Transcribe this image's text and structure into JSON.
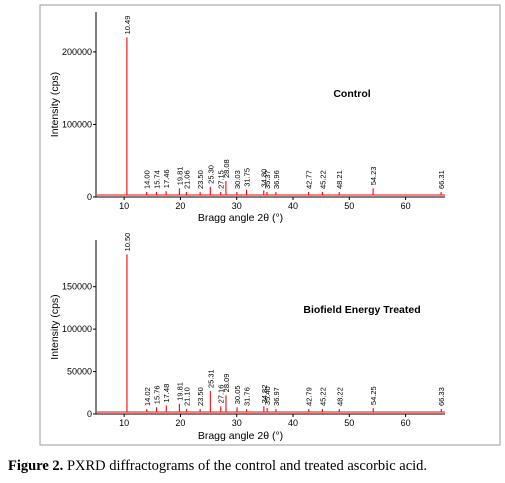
{
  "figure": {
    "caption_label": "Figure 2.",
    "caption_text": " PXRD diffractograms of the control and treated ascorbic acid.",
    "panel_border_color": "#9a9a9a",
    "trace_color": "#ff0000",
    "axis_color": "#000000"
  },
  "chart_data": [
    {
      "type": "line",
      "title": "Control",
      "xlabel": "Bragg angle 2θ (°)",
      "ylabel": "Intensity (cps)",
      "xlim": [
        5,
        67
      ],
      "ylim": [
        0,
        255000
      ],
      "xticks": [
        10,
        20,
        30,
        40,
        50,
        60
      ],
      "yticks": [
        0,
        100000,
        200000
      ],
      "ytick_labels": [
        "0",
        "100000",
        "200000"
      ],
      "grid": false,
      "peaks": [
        {
          "x": 10.49,
          "y": 220000,
          "label": "10.49"
        },
        {
          "x": 14.0,
          "y": 4000,
          "label": "14.00"
        },
        {
          "x": 15.74,
          "y": 7000,
          "label": "15.74"
        },
        {
          "x": 17.46,
          "y": 8000,
          "label": "17.46"
        },
        {
          "x": 19.81,
          "y": 12000,
          "label": "19.81"
        },
        {
          "x": 21.06,
          "y": 4500,
          "label": "21.06"
        },
        {
          "x": 23.5,
          "y": 4500,
          "label": "23.50"
        },
        {
          "x": 25.3,
          "y": 14000,
          "label": "25.30"
        },
        {
          "x": 27.15,
          "y": 7000,
          "label": "27.15"
        },
        {
          "x": 28.08,
          "y": 22000,
          "label": "28.08"
        },
        {
          "x": 30.03,
          "y": 6000,
          "label": "30.03"
        },
        {
          "x": 31.75,
          "y": 10000,
          "label": "31.75"
        },
        {
          "x": 34.8,
          "y": 9000,
          "label": "34.80"
        },
        {
          "x": 35.37,
          "y": 6000,
          "label": "35.37"
        },
        {
          "x": 36.96,
          "y": 5000,
          "label": "36.96"
        },
        {
          "x": 42.77,
          "y": 5000,
          "label": "42.77"
        },
        {
          "x": 45.22,
          "y": 4000,
          "label": "45.22"
        },
        {
          "x": 48.21,
          "y": 3500,
          "label": "48.21"
        },
        {
          "x": 54.23,
          "y": 12000,
          "label": "54.23"
        },
        {
          "x": 66.31,
          "y": 4500,
          "label": "66.31"
        }
      ]
    },
    {
      "type": "line",
      "title": "Biofield Energy Treated",
      "xlabel": "Bragg angle 2θ (°)",
      "ylabel": "Intensity (cps)",
      "xlim": [
        5,
        67
      ],
      "ylim": [
        0,
        205000
      ],
      "xticks": [
        10,
        20,
        30,
        40,
        50,
        60
      ],
      "yticks": [
        0,
        50000,
        100000,
        150000
      ],
      "ytick_labels": [
        "0",
        "50000",
        "100000",
        "150000"
      ],
      "grid": false,
      "peaks": [
        {
          "x": 10.5,
          "y": 188000,
          "label": "10.50"
        },
        {
          "x": 14.02,
          "y": 4000,
          "label": "14.02"
        },
        {
          "x": 15.76,
          "y": 8000,
          "label": "15.76"
        },
        {
          "x": 17.48,
          "y": 10000,
          "label": "17.48"
        },
        {
          "x": 19.81,
          "y": 12000,
          "label": "19.81"
        },
        {
          "x": 21.1,
          "y": 5000,
          "label": "21.10"
        },
        {
          "x": 23.5,
          "y": 5000,
          "label": "23.50"
        },
        {
          "x": 25.31,
          "y": 27000,
          "label": "25.31"
        },
        {
          "x": 27.16,
          "y": 9000,
          "label": "27.16"
        },
        {
          "x": 28.09,
          "y": 22000,
          "label": "28.09"
        },
        {
          "x": 30.05,
          "y": 8000,
          "label": "30.05"
        },
        {
          "x": 31.76,
          "y": 4000,
          "label": "31.76"
        },
        {
          "x": 34.82,
          "y": 9000,
          "label": "34.82"
        },
        {
          "x": 35.4,
          "y": 7000,
          "label": "35.40"
        },
        {
          "x": 36.97,
          "y": 6000,
          "label": "36.97"
        },
        {
          "x": 42.79,
          "y": 4000,
          "label": "42.79"
        },
        {
          "x": 45.22,
          "y": 4000,
          "label": "45.22"
        },
        {
          "x": 48.22,
          "y": 4000,
          "label": "48.22"
        },
        {
          "x": 54.25,
          "y": 7000,
          "label": "54.25"
        },
        {
          "x": 66.33,
          "y": 5000,
          "label": "66.33"
        }
      ]
    }
  ]
}
